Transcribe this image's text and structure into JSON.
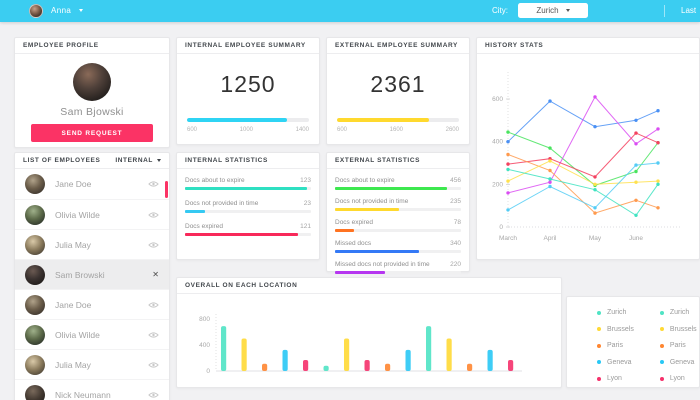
{
  "topbar": {
    "bg_color": "#3bcdf1",
    "user_name": "Anna",
    "city_label": "City:",
    "city_value": "Zurich",
    "right_link": "Last"
  },
  "profile": {
    "header": "EMPLOYEE PROFILE",
    "name": "Sam Bjowski",
    "button_label": "SEND REQUEST"
  },
  "employee_list": {
    "header": "LIST OF EMPLOYEES",
    "filter_value": "INTERNAL",
    "items": [
      {
        "name": "Jane Doe",
        "icon": "eye",
        "selected": false
      },
      {
        "name": "Olivia Wilde",
        "icon": "eye",
        "selected": false
      },
      {
        "name": "Julia May",
        "icon": "eye",
        "selected": false
      },
      {
        "name": "Sam Browski",
        "icon": "close",
        "selected": true
      },
      {
        "name": "Jane Doe",
        "icon": "eye",
        "selected": false
      },
      {
        "name": "Olivia Wilde",
        "icon": "eye",
        "selected": false
      },
      {
        "name": "Julia May",
        "icon": "eye",
        "selected": false
      },
      {
        "name": "Nick Neumann",
        "icon": "eye",
        "selected": false
      }
    ]
  },
  "internal_summary": {
    "header": "INTERNAL EMPLOYEE SUMMARY",
    "value": "1250",
    "ticks": [
      "600",
      "1000",
      "1400"
    ],
    "pct": 82,
    "color": "#2fd4f4"
  },
  "external_summary": {
    "header": "EXTERNAL EMPLOYEE SUMMARY",
    "value": "2361",
    "ticks": [
      "600",
      "1600",
      "2600"
    ],
    "pct": 75,
    "color": "#ffd92e"
  },
  "internal_stats": {
    "header": "INTERNAL STATISTICS",
    "rows": [
      {
        "label": "Docs about to expire",
        "value": "123",
        "pct": 97,
        "color": "#2fe0c2"
      },
      {
        "label": "Docs not provided in time",
        "value": "23",
        "pct": 16,
        "color": "#35c9f2"
      },
      {
        "label": "Docs expired",
        "value": "121",
        "pct": 90,
        "color": "#f8295a"
      }
    ]
  },
  "external_stats": {
    "header": "EXTERNAL STATISTICS",
    "rows": [
      {
        "label": "Docs about to expire",
        "value": "456",
        "pct": 89,
        "color": "#3de84f"
      },
      {
        "label": "Docs not provided in time",
        "value": "235",
        "pct": 51,
        "color": "#ffd92e"
      },
      {
        "label": "Docs expired",
        "value": "78",
        "pct": 15,
        "color": "#ff7321"
      },
      {
        "label": "Missed docs",
        "value": "340",
        "pct": 67,
        "color": "#3479f6"
      },
      {
        "label": "Missed docs not provided in time",
        "value": "220",
        "pct": 40,
        "color": "#b636f0"
      }
    ]
  },
  "chart_data": [
    {
      "name": "history_stats",
      "title": "HISTORY STATS",
      "type": "line",
      "x_labels": [
        "March",
        "April",
        "May",
        "June"
      ],
      "y_ticks": [
        0,
        200,
        400,
        600
      ],
      "ylim": [
        0,
        700
      ],
      "grid": false,
      "series": [
        {
          "name": "series-blue",
          "color": "#4a90f4",
          "values": [
            400,
            590,
            470,
            500,
            545
          ]
        },
        {
          "name": "series-green",
          "color": "#49e45f",
          "values": [
            445,
            370,
            195,
            260,
            395
          ]
        },
        {
          "name": "series-magenta",
          "color": "#da4df2",
          "values": [
            160,
            210,
            610,
            390,
            460
          ]
        },
        {
          "name": "series-red",
          "color": "#f4415f",
          "values": [
            295,
            320,
            235,
            440,
            395
          ]
        },
        {
          "name": "series-orange",
          "color": "#ff9a4d",
          "values": [
            340,
            265,
            65,
            125,
            90
          ]
        },
        {
          "name": "series-yellow",
          "color": "#ffe14d",
          "values": [
            215,
            310,
            200,
            210,
            215
          ]
        },
        {
          "name": "series-teal",
          "color": "#3fe3c1",
          "values": [
            270,
            225,
            175,
            55,
            200
          ]
        },
        {
          "name": "series-cyan",
          "color": "#54ccf5",
          "values": [
            80,
            190,
            90,
            290,
            300
          ]
        }
      ]
    },
    {
      "name": "overall_on_each_location",
      "title": "OVERALL ON EACH LOCATION",
      "type": "bar",
      "y_ticks": [
        0,
        400,
        800
      ],
      "ylim": [
        0,
        800
      ],
      "bars": [
        {
          "location": "Zurich",
          "value": 690,
          "color": "#4fe3c4"
        },
        {
          "location": "Brussels",
          "value": 500,
          "color": "#ffd935"
        },
        {
          "location": "Paris",
          "value": 110,
          "color": "#ff8631"
        },
        {
          "location": "Geneva",
          "value": 325,
          "color": "#29c8f5"
        },
        {
          "location": "Lyon",
          "value": 170,
          "color": "#f5316b"
        },
        {
          "location": "Zurich",
          "value": 80,
          "color": "#4fe3c4"
        },
        {
          "location": "Brussels",
          "value": 500,
          "color": "#ffd935"
        },
        {
          "location": "Lyon",
          "value": 170,
          "color": "#f5316b"
        },
        {
          "location": "Paris",
          "value": 110,
          "color": "#ff8631"
        },
        {
          "location": "Geneva",
          "value": 325,
          "color": "#29c8f5"
        },
        {
          "location": "Zurich",
          "value": 690,
          "color": "#4fe3c4"
        },
        {
          "location": "Brussels",
          "value": 500,
          "color": "#ffd935"
        },
        {
          "location": "Paris",
          "value": 110,
          "color": "#ff8631"
        },
        {
          "location": "Geneva",
          "value": 325,
          "color": "#29c8f5"
        },
        {
          "location": "Lyon",
          "value": 170,
          "color": "#f5316b"
        }
      ],
      "legend": {
        "columns": 2,
        "entries": [
          {
            "label": "Zurich",
            "color": "#4fe3c4"
          },
          {
            "label": "Brussels",
            "color": "#ffd935"
          },
          {
            "label": "Paris",
            "color": "#ff8631"
          },
          {
            "label": "Geneva",
            "color": "#29c8f5"
          },
          {
            "label": "Lyon",
            "color": "#f5316b"
          }
        ]
      }
    }
  ]
}
